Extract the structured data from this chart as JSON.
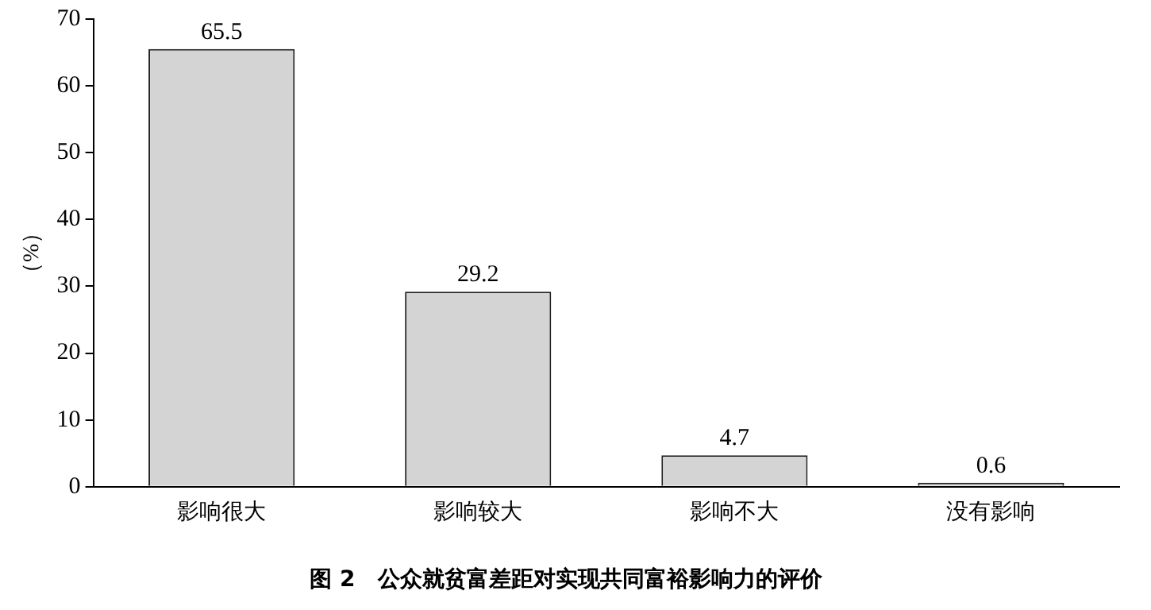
{
  "chart_data": {
    "type": "bar",
    "title": "图 2　公众就贫富差距对实现共同富裕影响力的评价",
    "ylabel": "（%）",
    "categories": [
      "影响很大",
      "影响较大",
      "影响不大",
      "没有影响"
    ],
    "values": [
      65.5,
      29.2,
      4.7,
      0.6
    ],
    "color": "#d4d4d4",
    "ylim": [
      0,
      70
    ],
    "yticks": [
      0,
      10,
      20,
      30,
      40,
      50,
      60,
      70
    ],
    "grid": false,
    "legend": false,
    "data_labels": true
  }
}
